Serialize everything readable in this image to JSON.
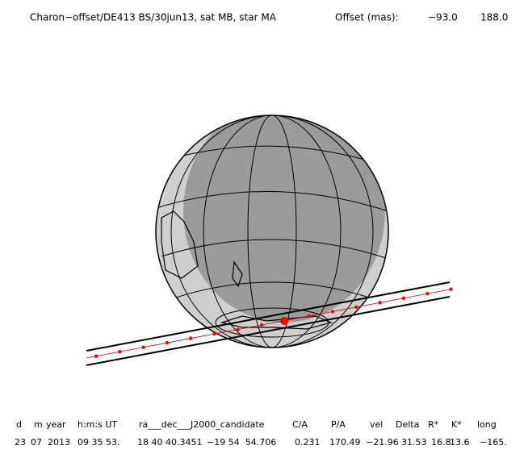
{
  "header": {
    "title": "Charon−offset/DE413 BS/30jun13, sat MB, star MA",
    "offset_label": "Offset (mas):",
    "offset_values": [
      "−93.0",
      "188.0"
    ]
  },
  "table": {
    "headers": [
      "d",
      "m",
      "year",
      "h:m:s UT",
      "ra___dec___J2000_candidate",
      "C/A",
      "P/A",
      "vel",
      "Delta",
      "R*",
      "K*",
      "long"
    ],
    "rows": [
      [
        "23",
        "07",
        "2013",
        "09 35 53.",
        "18 40 40.3451",
        "−19 54  54.706",
        "0.231",
        "170.49",
        "−21.96",
        "31.53",
        "16.8",
        "13.6",
        "−165."
      ]
    ]
  }
}
